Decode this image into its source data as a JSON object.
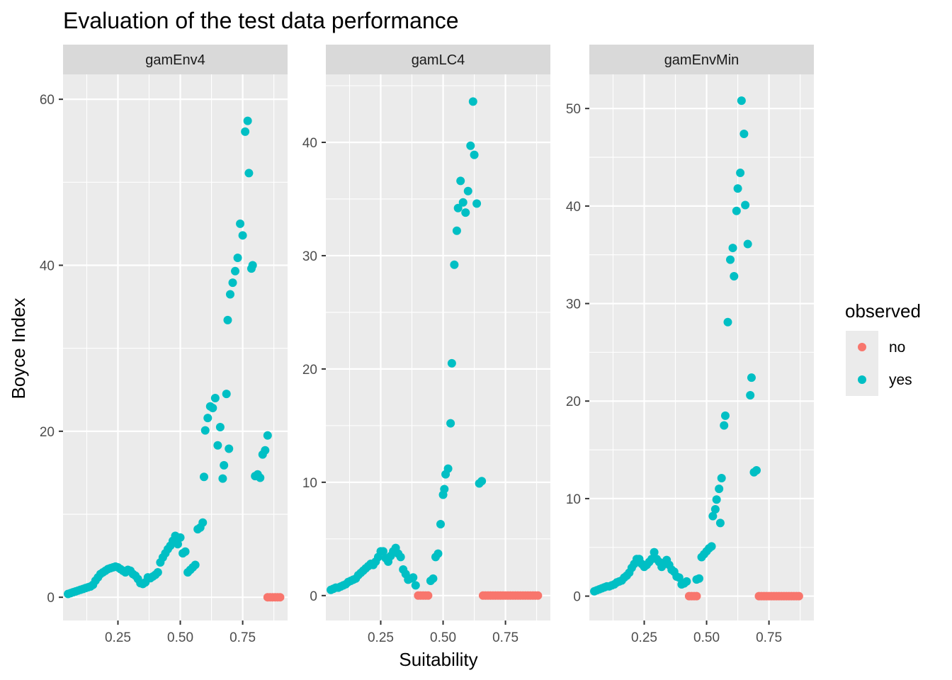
{
  "chart_data": {
    "type": "scatter",
    "title": "Evaluation of the test data performance",
    "xlabel": "Suitability",
    "ylabel": "Boyce Index",
    "legend": {
      "title": "observed",
      "position": "right",
      "entries": [
        {
          "label": "no",
          "color": "#F8766D"
        },
        {
          "label": "yes",
          "color": "#00BFC4"
        }
      ]
    },
    "grid": true,
    "xlim": [
      0.03,
      0.93
    ],
    "x_ticks": [
      0.25,
      0.5,
      0.75
    ],
    "x_tick_labels": [
      "0.25",
      "0.50",
      "0.75"
    ],
    "panels": [
      {
        "name": "gamEnv4",
        "ylim": [
          -2.8,
          63
        ],
        "y_ticks": [
          0,
          20,
          40,
          60
        ],
        "y_tick_labels": [
          "0",
          "20",
          "40",
          "60"
        ],
        "points": {
          "yes": [
            [
              0.05,
              0.4
            ],
            [
              0.06,
              0.5
            ],
            [
              0.07,
              0.6
            ],
            [
              0.08,
              0.7
            ],
            [
              0.09,
              0.8
            ],
            [
              0.1,
              0.9
            ],
            [
              0.11,
              1.0
            ],
            [
              0.12,
              1.1
            ],
            [
              0.13,
              1.2
            ],
            [
              0.14,
              1.3
            ],
            [
              0.15,
              1.5
            ],
            [
              0.16,
              2.0
            ],
            [
              0.17,
              2.4
            ],
            [
              0.18,
              2.8
            ],
            [
              0.19,
              3.0
            ],
            [
              0.2,
              3.2
            ],
            [
              0.21,
              3.4
            ],
            [
              0.22,
              3.5
            ],
            [
              0.23,
              3.6
            ],
            [
              0.24,
              3.7
            ],
            [
              0.25,
              3.6
            ],
            [
              0.26,
              3.4
            ],
            [
              0.27,
              3.2
            ],
            [
              0.28,
              3.0
            ],
            [
              0.29,
              3.3
            ],
            [
              0.3,
              3.2
            ],
            [
              0.31,
              2.8
            ],
            [
              0.32,
              2.6
            ],
            [
              0.33,
              2.2
            ],
            [
              0.34,
              1.7
            ],
            [
              0.35,
              1.6
            ],
            [
              0.36,
              1.8
            ],
            [
              0.37,
              2.4
            ],
            [
              0.38,
              2.3
            ],
            [
              0.39,
              2.5
            ],
            [
              0.4,
              2.7
            ],
            [
              0.41,
              3.0
            ],
            [
              0.42,
              4.2
            ],
            [
              0.43,
              4.8
            ],
            [
              0.44,
              5.3
            ],
            [
              0.45,
              5.8
            ],
            [
              0.46,
              6.2
            ],
            [
              0.47,
              6.8
            ],
            [
              0.48,
              7.4
            ],
            [
              0.49,
              6.4
            ],
            [
              0.5,
              7.2
            ],
            [
              0.51,
              5.3
            ],
            [
              0.52,
              5.5
            ],
            [
              0.53,
              3.0
            ],
            [
              0.54,
              3.3
            ],
            [
              0.55,
              3.6
            ],
            [
              0.56,
              3.9
            ],
            [
              0.57,
              8.2
            ],
            [
              0.58,
              8.4
            ],
            [
              0.59,
              9.0
            ],
            [
              0.595,
              14.5
            ],
            [
              0.6,
              20.1
            ],
            [
              0.61,
              21.6
            ],
            [
              0.62,
              23.0
            ],
            [
              0.63,
              22.8
            ],
            [
              0.64,
              24.0
            ],
            [
              0.65,
              18.3
            ],
            [
              0.66,
              20.5
            ],
            [
              0.67,
              14.3
            ],
            [
              0.675,
              15.9
            ],
            [
              0.685,
              24.5
            ],
            [
              0.69,
              33.4
            ],
            [
              0.695,
              17.9
            ],
            [
              0.7,
              36.5
            ],
            [
              0.71,
              37.9
            ],
            [
              0.72,
              39.3
            ],
            [
              0.73,
              40.9
            ],
            [
              0.74,
              45.0
            ],
            [
              0.75,
              43.6
            ],
            [
              0.76,
              56.1
            ],
            [
              0.77,
              57.4
            ],
            [
              0.775,
              51.1
            ],
            [
              0.785,
              39.6
            ],
            [
              0.79,
              40.0
            ],
            [
              0.8,
              14.6
            ],
            [
              0.81,
              14.8
            ],
            [
              0.82,
              14.4
            ],
            [
              0.83,
              17.2
            ],
            [
              0.84,
              17.7
            ],
            [
              0.85,
              19.5
            ]
          ],
          "no": [
            [
              0.85,
              0
            ],
            [
              0.86,
              0
            ],
            [
              0.87,
              0
            ],
            [
              0.88,
              0
            ],
            [
              0.89,
              0
            ],
            [
              0.9,
              0
            ]
          ]
        }
      },
      {
        "name": "gamLC4",
        "ylim": [
          -2.2,
          46
        ],
        "y_ticks": [
          0,
          10,
          20,
          30,
          40
        ],
        "y_tick_labels": [
          "0",
          "10",
          "20",
          "30",
          "40"
        ],
        "points": {
          "yes": [
            [
              0.05,
              0.5
            ],
            [
              0.06,
              0.6
            ],
            [
              0.07,
              0.7
            ],
            [
              0.08,
              0.7
            ],
            [
              0.09,
              0.8
            ],
            [
              0.1,
              0.9
            ],
            [
              0.11,
              1.0
            ],
            [
              0.12,
              1.2
            ],
            [
              0.13,
              1.3
            ],
            [
              0.14,
              1.4
            ],
            [
              0.15,
              1.5
            ],
            [
              0.16,
              1.8
            ],
            [
              0.17,
              2.0
            ],
            [
              0.18,
              2.2
            ],
            [
              0.19,
              2.4
            ],
            [
              0.2,
              2.6
            ],
            [
              0.21,
              2.8
            ],
            [
              0.22,
              2.7
            ],
            [
              0.23,
              3.0
            ],
            [
              0.24,
              3.4
            ],
            [
              0.25,
              3.9
            ],
            [
              0.26,
              3.9
            ],
            [
              0.27,
              3.3
            ],
            [
              0.28,
              3.0
            ],
            [
              0.29,
              3.5
            ],
            [
              0.3,
              3.9
            ],
            [
              0.31,
              4.2
            ],
            [
              0.32,
              3.7
            ],
            [
              0.33,
              3.4
            ],
            [
              0.34,
              2.3
            ],
            [
              0.35,
              1.9
            ],
            [
              0.36,
              1.4
            ],
            [
              0.37,
              1.5
            ],
            [
              0.38,
              1.6
            ],
            [
              0.39,
              0.9
            ],
            [
              0.45,
              1.3
            ],
            [
              0.46,
              1.5
            ],
            [
              0.47,
              3.4
            ],
            [
              0.48,
              3.7
            ],
            [
              0.49,
              6.3
            ],
            [
              0.5,
              8.9
            ],
            [
              0.505,
              9.4
            ],
            [
              0.51,
              10.7
            ],
            [
              0.52,
              11.2
            ],
            [
              0.53,
              15.2
            ],
            [
              0.535,
              20.5
            ],
            [
              0.545,
              29.2
            ],
            [
              0.555,
              32.2
            ],
            [
              0.56,
              34.2
            ],
            [
              0.57,
              36.6
            ],
            [
              0.58,
              34.7
            ],
            [
              0.59,
              33.8
            ],
            [
              0.6,
              35.7
            ],
            [
              0.61,
              39.7
            ],
            [
              0.62,
              43.6
            ],
            [
              0.625,
              38.9
            ],
            [
              0.635,
              34.6
            ],
            [
              0.645,
              9.9
            ],
            [
              0.655,
              10.1
            ]
          ],
          "no": [
            [
              0.4,
              0
            ],
            [
              0.41,
              0
            ],
            [
              0.42,
              0
            ],
            [
              0.43,
              0
            ],
            [
              0.44,
              0
            ],
            [
              0.66,
              0
            ],
            [
              0.67,
              0
            ],
            [
              0.68,
              0
            ],
            [
              0.69,
              0
            ],
            [
              0.7,
              0
            ],
            [
              0.71,
              0
            ],
            [
              0.72,
              0
            ],
            [
              0.73,
              0
            ],
            [
              0.74,
              0
            ],
            [
              0.75,
              0
            ],
            [
              0.76,
              0
            ],
            [
              0.77,
              0
            ],
            [
              0.78,
              0
            ],
            [
              0.79,
              0
            ],
            [
              0.8,
              0
            ],
            [
              0.81,
              0
            ],
            [
              0.82,
              0
            ],
            [
              0.83,
              0
            ],
            [
              0.84,
              0
            ],
            [
              0.85,
              0
            ],
            [
              0.86,
              0
            ],
            [
              0.87,
              0
            ],
            [
              0.88,
              0
            ]
          ]
        }
      },
      {
        "name": "gamEnvMin",
        "ylim": [
          -2.5,
          53.5
        ],
        "y_ticks": [
          0,
          10,
          20,
          30,
          40,
          50
        ],
        "y_tick_labels": [
          "0",
          "10",
          "20",
          "30",
          "40",
          "50"
        ],
        "points": {
          "yes": [
            [
              0.05,
              0.5
            ],
            [
              0.06,
              0.6
            ],
            [
              0.07,
              0.7
            ],
            [
              0.08,
              0.8
            ],
            [
              0.09,
              0.9
            ],
            [
              0.1,
              1.0
            ],
            [
              0.11,
              1.0
            ],
            [
              0.12,
              1.1
            ],
            [
              0.13,
              1.2
            ],
            [
              0.14,
              1.4
            ],
            [
              0.15,
              1.5
            ],
            [
              0.16,
              1.6
            ],
            [
              0.17,
              1.9
            ],
            [
              0.18,
              2.1
            ],
            [
              0.19,
              2.4
            ],
            [
              0.2,
              2.9
            ],
            [
              0.21,
              3.3
            ],
            [
              0.22,
              3.8
            ],
            [
              0.23,
              3.8
            ],
            [
              0.24,
              3.3
            ],
            [
              0.25,
              3.0
            ],
            [
              0.26,
              3.2
            ],
            [
              0.27,
              3.5
            ],
            [
              0.28,
              3.8
            ],
            [
              0.29,
              4.5
            ],
            [
              0.3,
              3.8
            ],
            [
              0.31,
              3.5
            ],
            [
              0.32,
              3.0
            ],
            [
              0.33,
              3.4
            ],
            [
              0.34,
              3.7
            ],
            [
              0.35,
              3.2
            ],
            [
              0.36,
              2.7
            ],
            [
              0.37,
              2.5
            ],
            [
              0.38,
              2.0
            ],
            [
              0.39,
              1.9
            ],
            [
              0.4,
              1.2
            ],
            [
              0.41,
              1.3
            ],
            [
              0.42,
              1.5
            ],
            [
              0.46,
              1.7
            ],
            [
              0.47,
              1.8
            ],
            [
              0.48,
              4.0
            ],
            [
              0.49,
              4.3
            ],
            [
              0.5,
              4.6
            ],
            [
              0.51,
              4.9
            ],
            [
              0.52,
              5.1
            ],
            [
              0.525,
              8.2
            ],
            [
              0.535,
              8.9
            ],
            [
              0.54,
              9.9
            ],
            [
              0.55,
              11.0
            ],
            [
              0.555,
              7.5
            ],
            [
              0.56,
              12.1
            ],
            [
              0.57,
              17.5
            ],
            [
              0.575,
              18.5
            ],
            [
              0.585,
              28.1
            ],
            [
              0.595,
              34.5
            ],
            [
              0.605,
              35.7
            ],
            [
              0.61,
              32.8
            ],
            [
              0.62,
              39.5
            ],
            [
              0.625,
              41.8
            ],
            [
              0.635,
              43.4
            ],
            [
              0.64,
              50.8
            ],
            [
              0.65,
              47.4
            ],
            [
              0.655,
              40.1
            ],
            [
              0.665,
              36.1
            ],
            [
              0.675,
              20.6
            ],
            [
              0.68,
              22.4
            ],
            [
              0.69,
              12.7
            ],
            [
              0.7,
              12.9
            ]
          ],
          "no": [
            [
              0.43,
              0
            ],
            [
              0.44,
              0
            ],
            [
              0.45,
              0
            ],
            [
              0.46,
              0
            ],
            [
              0.71,
              0
            ],
            [
              0.72,
              0
            ],
            [
              0.73,
              0
            ],
            [
              0.74,
              0
            ],
            [
              0.75,
              0
            ],
            [
              0.76,
              0
            ],
            [
              0.77,
              0
            ],
            [
              0.78,
              0
            ],
            [
              0.79,
              0
            ],
            [
              0.8,
              0
            ],
            [
              0.81,
              0
            ],
            [
              0.82,
              0
            ],
            [
              0.83,
              0
            ],
            [
              0.84,
              0
            ],
            [
              0.85,
              0
            ],
            [
              0.86,
              0
            ],
            [
              0.87,
              0
            ]
          ]
        }
      }
    ]
  }
}
